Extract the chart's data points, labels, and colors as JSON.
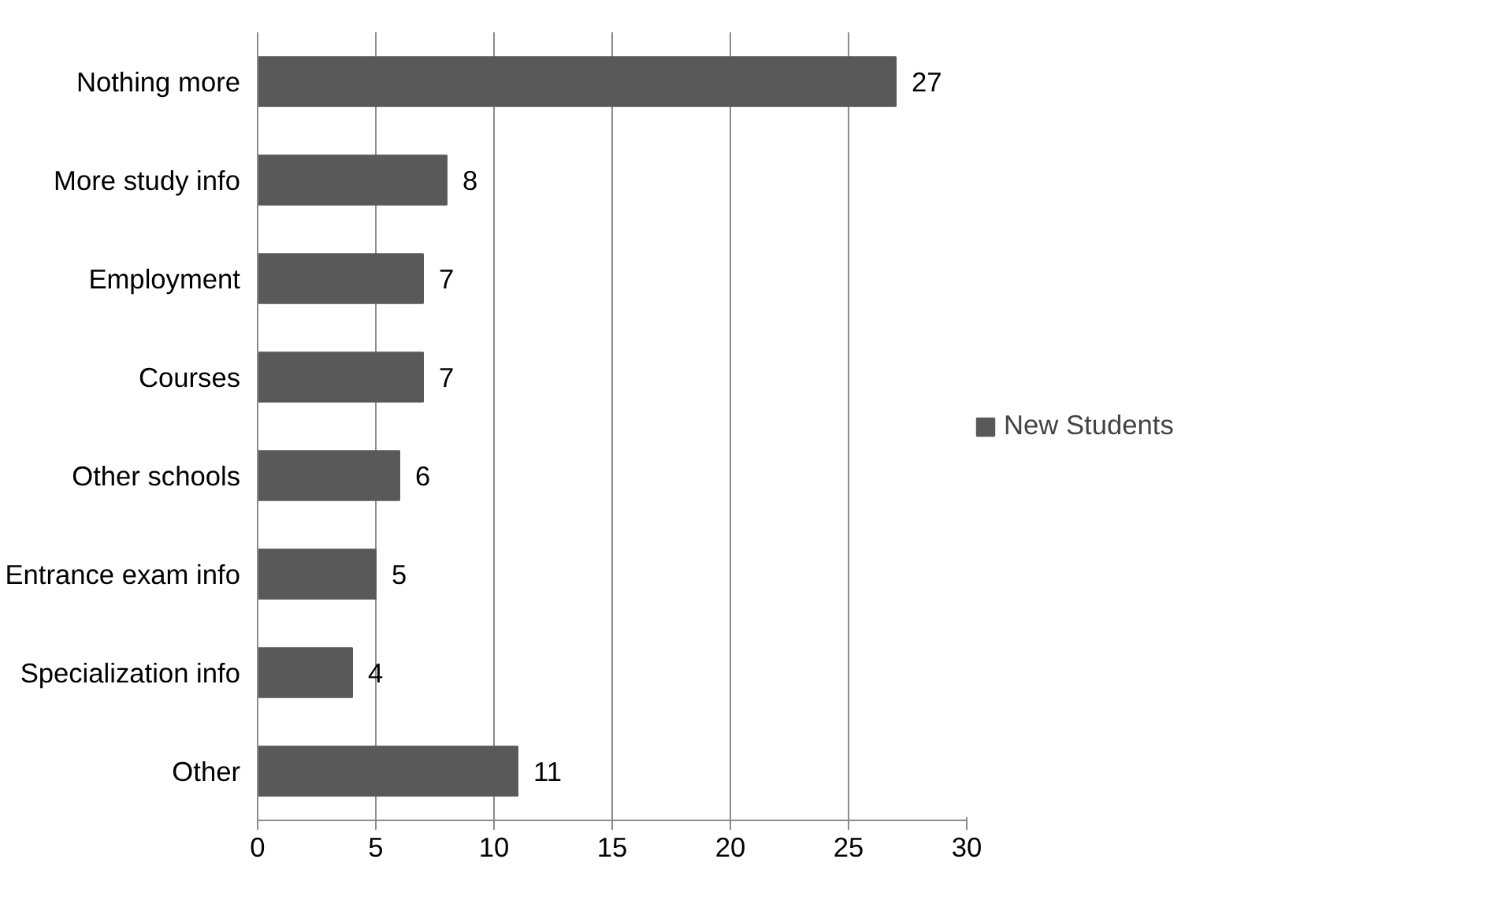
{
  "chart_data": {
    "type": "bar",
    "orientation": "horizontal",
    "categories": [
      "Nothing more",
      "More study info",
      "Employment",
      "Courses",
      "Other schools",
      "Entrance exam info",
      "Specialization info",
      "Other"
    ],
    "series": [
      {
        "name": "New Students",
        "color": "#595959",
        "values": [
          27,
          8,
          7,
          7,
          6,
          5,
          4,
          11
        ]
      }
    ],
    "xlim": [
      0,
      30
    ],
    "xticks": [
      0,
      5,
      10,
      15,
      20,
      25,
      30
    ],
    "grid": "x",
    "legend": "right",
    "data_labels": true
  }
}
